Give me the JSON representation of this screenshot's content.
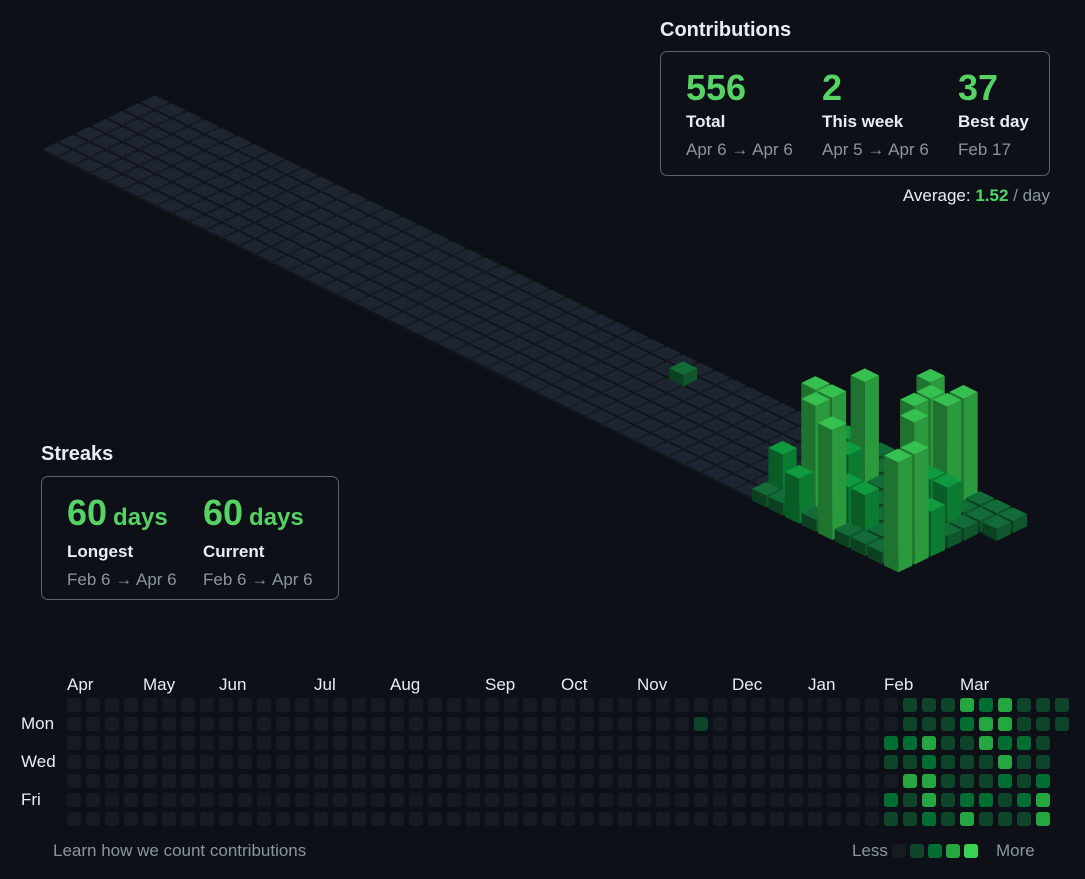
{
  "contributions": {
    "title": "Contributions",
    "stats": [
      {
        "value": 556,
        "label": "Total",
        "range": "Apr 6 → Apr 6"
      },
      {
        "value": 2,
        "label": "This week",
        "range": "Apr 5 → Apr 6"
      },
      {
        "value": 37,
        "label": "Best day",
        "range": "Feb 17"
      }
    ],
    "average": {
      "label": "Average:",
      "value": 1.52,
      "unit": "/ day"
    }
  },
  "streaks": {
    "title": "Streaks",
    "items": [
      {
        "value": 60,
        "unit": "days",
        "label": "Longest",
        "range": "Feb 6 → Apr 6"
      },
      {
        "value": 60,
        "unit": "days",
        "label": "Current",
        "range": "Feb 6 → Apr 6"
      }
    ]
  },
  "calendar": {
    "months": [
      {
        "label": "Apr",
        "week": 0
      },
      {
        "label": "May",
        "week": 4
      },
      {
        "label": "Jun",
        "week": 8
      },
      {
        "label": "Jul",
        "week": 13
      },
      {
        "label": "Aug",
        "week": 17
      },
      {
        "label": "Sep",
        "week": 22
      },
      {
        "label": "Oct",
        "week": 26
      },
      {
        "label": "Nov",
        "week": 30
      },
      {
        "label": "Dec",
        "week": 35
      },
      {
        "label": "Jan",
        "week": 39
      },
      {
        "label": "Feb",
        "week": 43
      },
      {
        "label": "Mar",
        "week": 47
      }
    ],
    "days": [
      "Mon",
      "Wed",
      "Fri"
    ],
    "colors": [
      "#161b22",
      "#0e4429",
      "#006d32",
      "#26a641",
      "#39d353"
    ],
    "levels": [
      [
        0,
        0,
        0,
        0,
        0,
        0,
        0
      ],
      [
        0,
        0,
        0,
        0,
        0,
        0,
        0
      ],
      [
        0,
        0,
        0,
        0,
        0,
        0,
        0
      ],
      [
        0,
        0,
        0,
        0,
        0,
        0,
        0
      ],
      [
        0,
        0,
        0,
        0,
        0,
        0,
        0
      ],
      [
        0,
        0,
        0,
        0,
        0,
        0,
        0
      ],
      [
        0,
        0,
        0,
        0,
        0,
        0,
        0
      ],
      [
        0,
        0,
        0,
        0,
        0,
        0,
        0
      ],
      [
        0,
        0,
        0,
        0,
        0,
        0,
        0
      ],
      [
        0,
        0,
        0,
        0,
        0,
        0,
        0
      ],
      [
        0,
        0,
        0,
        0,
        0,
        0,
        0
      ],
      [
        0,
        0,
        0,
        0,
        0,
        0,
        0
      ],
      [
        0,
        0,
        0,
        0,
        0,
        0,
        0
      ],
      [
        0,
        0,
        0,
        0,
        0,
        0,
        0
      ],
      [
        0,
        0,
        0,
        0,
        0,
        0,
        0
      ],
      [
        0,
        0,
        0,
        0,
        0,
        0,
        0
      ],
      [
        0,
        0,
        0,
        0,
        0,
        0,
        0
      ],
      [
        0,
        0,
        0,
        0,
        0,
        0,
        0
      ],
      [
        0,
        0,
        0,
        0,
        0,
        0,
        0
      ],
      [
        0,
        0,
        0,
        0,
        0,
        0,
        0
      ],
      [
        0,
        0,
        0,
        0,
        0,
        0,
        0
      ],
      [
        0,
        0,
        0,
        0,
        0,
        0,
        0
      ],
      [
        0,
        0,
        0,
        0,
        0,
        0,
        0
      ],
      [
        0,
        0,
        0,
        0,
        0,
        0,
        0
      ],
      [
        0,
        0,
        0,
        0,
        0,
        0,
        0
      ],
      [
        0,
        0,
        0,
        0,
        0,
        0,
        0
      ],
      [
        0,
        0,
        0,
        0,
        0,
        0,
        0
      ],
      [
        0,
        0,
        0,
        0,
        0,
        0,
        0
      ],
      [
        0,
        0,
        0,
        0,
        0,
        0,
        0
      ],
      [
        0,
        0,
        0,
        0,
        0,
        0,
        0
      ],
      [
        0,
        0,
        0,
        0,
        0,
        0,
        0
      ],
      [
        0,
        0,
        0,
        0,
        0,
        0,
        0
      ],
      [
        0,
        0,
        0,
        0,
        0,
        0,
        0
      ],
      [
        0,
        1,
        0,
        0,
        0,
        0,
        0
      ],
      [
        0,
        0,
        0,
        0,
        0,
        0,
        0
      ],
      [
        0,
        0,
        0,
        0,
        0,
        0,
        0
      ],
      [
        0,
        0,
        0,
        0,
        0,
        0,
        0
      ],
      [
        0,
        0,
        0,
        0,
        0,
        0,
        0
      ],
      [
        0,
        0,
        0,
        0,
        0,
        0,
        0
      ],
      [
        0,
        0,
        0,
        0,
        0,
        0,
        0
      ],
      [
        0,
        0,
        0,
        0,
        0,
        0,
        0
      ],
      [
        0,
        0,
        0,
        0,
        0,
        0,
        0
      ],
      [
        0,
        0,
        0,
        0,
        0,
        0,
        0
      ],
      [
        0,
        0,
        2,
        1,
        0,
        2,
        1
      ],
      [
        1,
        1,
        2,
        1,
        3,
        1,
        1
      ],
      [
        1,
        1,
        3,
        2,
        3,
        3,
        2
      ],
      [
        1,
        1,
        1,
        1,
        1,
        1,
        1
      ],
      [
        3,
        2,
        1,
        1,
        1,
        2,
        3
      ],
      [
        2,
        3,
        3,
        1,
        1,
        2,
        1
      ],
      [
        3,
        3,
        2,
        3,
        2,
        1,
        1
      ],
      [
        1,
        1,
        2,
        1,
        1,
        2,
        1
      ],
      [
        1,
        1,
        1,
        1,
        2,
        3,
        3
      ],
      [
        1,
        1
      ]
    ]
  },
  "footer": {
    "link": "Learn how we count contributions",
    "less": "Less",
    "more": "More"
  }
}
